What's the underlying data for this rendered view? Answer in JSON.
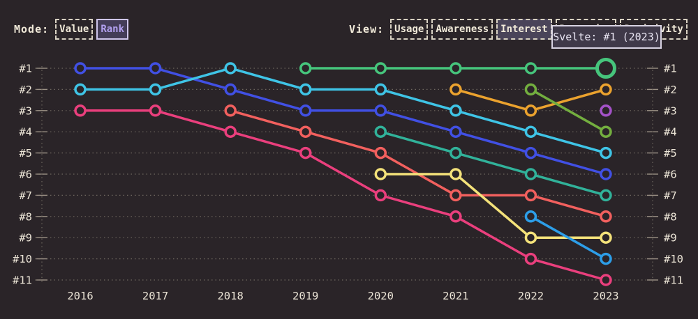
{
  "header": {
    "mode": {
      "label": "Mode:",
      "options": [
        {
          "label": "Value",
          "selected": false
        },
        {
          "label": "Rank",
          "selected": true
        }
      ]
    },
    "view": {
      "label": "View:",
      "options": [
        {
          "label": "Usage",
          "selected": false
        },
        {
          "label": "Awareness",
          "selected": false
        },
        {
          "label": "Interest",
          "selected": true
        },
        {
          "label": "Retention",
          "selected": false
        },
        {
          "label": "Positivity",
          "selected": false
        }
      ]
    },
    "tooltip": "Svelte: #1 (2023)"
  },
  "chart_data": {
    "type": "line",
    "variant": "bump-rank",
    "title": "",
    "x_labels": [
      "2016",
      "2017",
      "2018",
      "2019",
      "2020",
      "2021",
      "2022",
      "2023"
    ],
    "rank_labels": [
      "#1",
      "#2",
      "#3",
      "#4",
      "#5",
      "#6",
      "#7",
      "#8",
      "#9",
      "#10",
      "#11"
    ],
    "grid": true,
    "y_axis_inverted": true,
    "series": [
      {
        "id": "royal-blue",
        "name": null,
        "color": "#4150e4",
        "ranks": [
          1,
          1,
          2,
          3,
          3,
          4,
          5,
          6
        ]
      },
      {
        "id": "cyan",
        "name": null,
        "color": "#3fc4e6",
        "ranks": [
          2,
          2,
          1,
          2,
          2,
          3,
          4,
          5
        ]
      },
      {
        "id": "pink",
        "name": null,
        "color": "#ea3f7d",
        "ranks": [
          3,
          3,
          4,
          5,
          7,
          8,
          10,
          11
        ]
      },
      {
        "id": "tomato",
        "name": null,
        "color": "#f2605e",
        "ranks": [
          null,
          null,
          3,
          4,
          5,
          7,
          7,
          8
        ]
      },
      {
        "id": "emerald",
        "name": "Svelte",
        "color": "#46c57c",
        "ranks": [
          null,
          null,
          null,
          1,
          1,
          1,
          1,
          1
        ]
      },
      {
        "id": "teal",
        "name": null,
        "color": "#31b29a",
        "ranks": [
          null,
          null,
          null,
          null,
          4,
          5,
          6,
          7
        ]
      },
      {
        "id": "yellow",
        "name": null,
        "color": "#f4e27a",
        "ranks": [
          null,
          null,
          null,
          null,
          6,
          6,
          9,
          9
        ]
      },
      {
        "id": "orange",
        "name": null,
        "color": "#eba22e",
        "ranks": [
          null,
          null,
          null,
          null,
          null,
          2,
          3,
          2
        ]
      },
      {
        "id": "apple-green",
        "name": null,
        "color": "#73ae3f",
        "ranks": [
          null,
          null,
          null,
          null,
          null,
          null,
          2,
          4
        ]
      },
      {
        "id": "dodger-blue",
        "name": null,
        "color": "#2d9ee8",
        "ranks": [
          null,
          null,
          null,
          null,
          null,
          null,
          8,
          10
        ]
      },
      {
        "id": "purple",
        "name": null,
        "color": "#a452c8",
        "ranks": [
          null,
          null,
          null,
          null,
          null,
          null,
          null,
          3
        ]
      }
    ],
    "highlight": {
      "series": "emerald",
      "x_label": "2023",
      "rank": 1,
      "tooltip": "Svelte: #1 (2023)"
    }
  },
  "colors": {
    "background": "#2a2428",
    "axis_label": "#ebe4d6",
    "gridline": "#6e675f",
    "tick": "#9b9185",
    "button_border": "#d9d2c3",
    "selected_mode_bg": "#443d58",
    "selected_mode_text": "#b2a0ef",
    "selected_view_bg": "#4a4459",
    "tooltip_bg": "#3f3949",
    "tooltip_border": "#d8d3e3"
  }
}
